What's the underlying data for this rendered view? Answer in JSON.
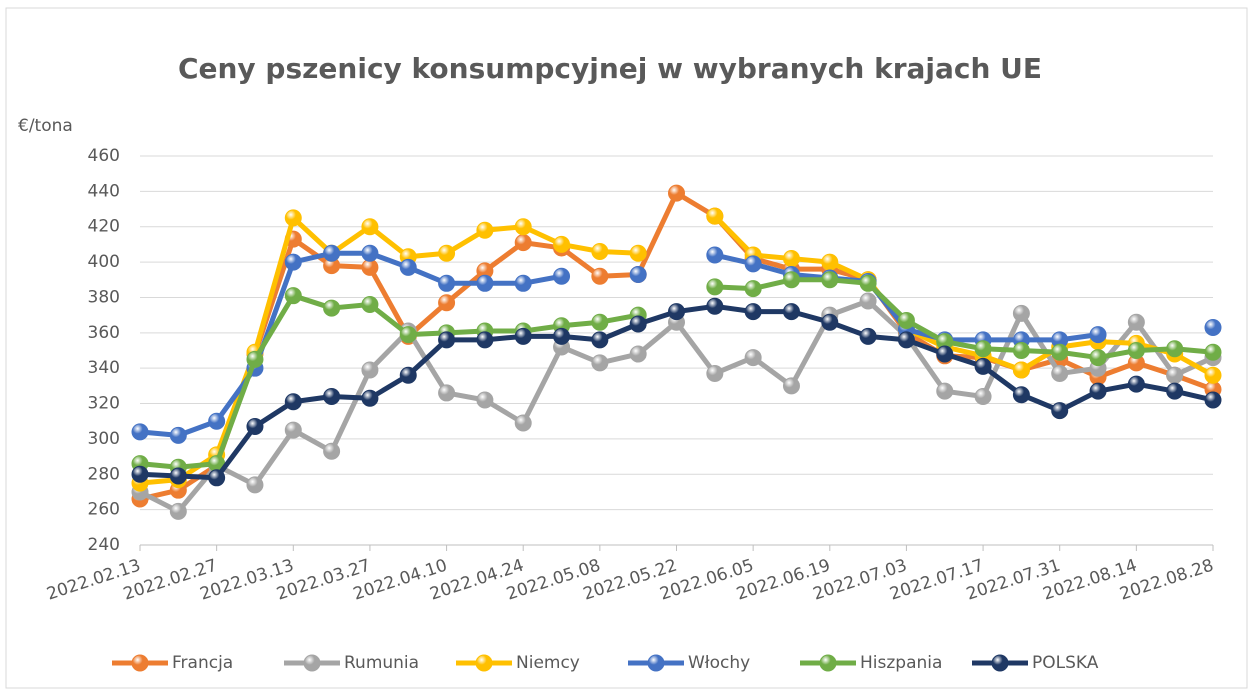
{
  "chart_data": {
    "type": "line",
    "title": "Ceny pszenicy konsumpcyjnej w wybranych krajach UE",
    "y_label": "€/tona",
    "categories": [
      "2022.02.13",
      null,
      "2022.02.27",
      null,
      "2022.03.13",
      null,
      "2022.03.27",
      null,
      "2022.04.10",
      null,
      "2022.04.24",
      null,
      "2022.05.08",
      null,
      "2022.05.22",
      null,
      "2022.06.05",
      null,
      "2022.06.19",
      null,
      "2022.07.03",
      null,
      "2022.07.17",
      null,
      "2022.07.31",
      null,
      "2022.08.14",
      null,
      "2022.08.28"
    ],
    "ylim": [
      240,
      460
    ],
    "yticks": [
      240,
      260,
      280,
      300,
      320,
      340,
      360,
      380,
      400,
      420,
      440,
      460
    ],
    "grid": true,
    "legend": "bottom",
    "series": [
      {
        "name": "Francja",
        "color": "#ed7d31",
        "values": [
          266,
          271,
          285,
          348,
          413,
          398,
          397,
          358,
          377,
          395,
          411,
          408,
          392,
          393,
          439,
          426,
          402,
          396,
          396,
          390,
          360,
          347,
          346,
          339,
          345,
          335,
          343,
          336,
          328
        ]
      },
      {
        "name": "Rumunia",
        "color": "#a5a5a5",
        "values": [
          270,
          259,
          285,
          274,
          305,
          293,
          339,
          361,
          326,
          322,
          309,
          352,
          343,
          348,
          366,
          337,
          346,
          330,
          370,
          378,
          358,
          327,
          324,
          371,
          337,
          340,
          366,
          336,
          346
        ]
      },
      {
        "name": "Niemcy",
        "color": "#ffc000",
        "values": [
          275,
          277,
          291,
          349,
          425,
          405,
          420,
          403,
          405,
          418,
          420,
          410,
          406,
          405,
          null,
          426,
          404,
          402,
          400,
          390,
          362,
          352,
          347,
          339,
          352,
          355,
          354,
          348,
          336
        ]
      },
      {
        "name": "Włochy",
        "color": "#4472c4",
        "values": [
          304,
          302,
          310,
          340,
          400,
          405,
          405,
          397,
          388,
          388,
          388,
          392,
          null,
          393,
          null,
          404,
          399,
          393,
          391,
          389,
          362,
          356,
          356,
          356,
          356,
          359,
          null,
          null,
          363
        ]
      },
      {
        "name": "Hiszpania",
        "color": "#70ad47",
        "values": [
          286,
          284,
          286,
          345,
          381,
          374,
          376,
          359,
          360,
          361,
          361,
          364,
          366,
          370,
          null,
          386,
          385,
          390,
          390,
          388,
          367,
          355,
          351,
          350,
          349,
          346,
          350,
          351,
          349
        ]
      },
      {
        "name": "POLSKA",
        "color": "#1f3864",
        "values": [
          280,
          279,
          278,
          307,
          321,
          324,
          323,
          336,
          356,
          356,
          358,
          358,
          356,
          365,
          372,
          375,
          372,
          372,
          366,
          358,
          356,
          348,
          341,
          325,
          316,
          327,
          331,
          327,
          322
        ]
      }
    ]
  }
}
